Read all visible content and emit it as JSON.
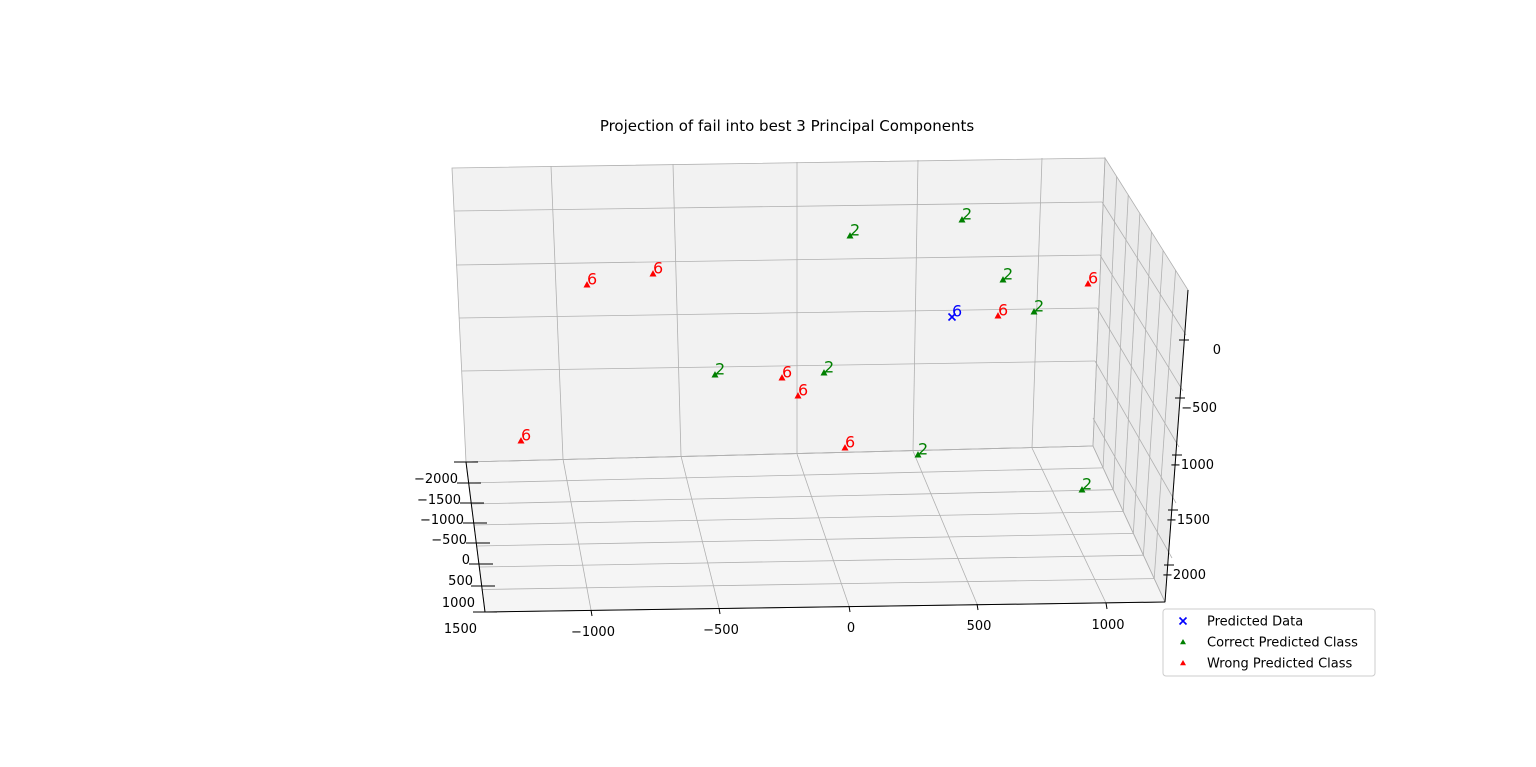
{
  "chart_data": {
    "type": "scatter",
    "title": "Projection of fail into best 3 Principal Components",
    "xlabel": "",
    "ylabel": "",
    "zlabel": "",
    "projection": "3d",
    "grid": true,
    "legend_position": "lower-right",
    "x_ticks": [
      "−1000",
      "−500",
      "0",
      "500",
      "1000"
    ],
    "y_ticks": [
      "−2000",
      "−1500",
      "−1000",
      "−500",
      "0",
      "500",
      "1000",
      "1500"
    ],
    "z_ticks": [
      "0",
      "−500",
      "−1000",
      "−1500",
      "−2000"
    ],
    "colors": {
      "predicted": "#0000ff",
      "correct": "#008000",
      "wrong": "#ff0000"
    },
    "series": [
      {
        "name": "Predicted Data",
        "marker": "x",
        "color": "#0000ff",
        "points": [
          {
            "label": "6"
          }
        ]
      },
      {
        "name": "Correct Predicted Class",
        "marker": "triangle",
        "color": "#008000",
        "points": [
          {
            "label": "2"
          },
          {
            "label": "2"
          },
          {
            "label": "2"
          },
          {
            "label": "2"
          },
          {
            "label": "2"
          },
          {
            "label": "2"
          },
          {
            "label": "2"
          },
          {
            "label": "2"
          }
        ]
      },
      {
        "name": "Wrong Predicted Class",
        "marker": "triangle",
        "color": "#ff0000",
        "points": [
          {
            "label": "6"
          },
          {
            "label": "6"
          },
          {
            "label": "6"
          },
          {
            "label": "6"
          },
          {
            "label": "6"
          },
          {
            "label": "6"
          },
          {
            "label": "6"
          },
          {
            "label": "6"
          }
        ]
      }
    ]
  }
}
